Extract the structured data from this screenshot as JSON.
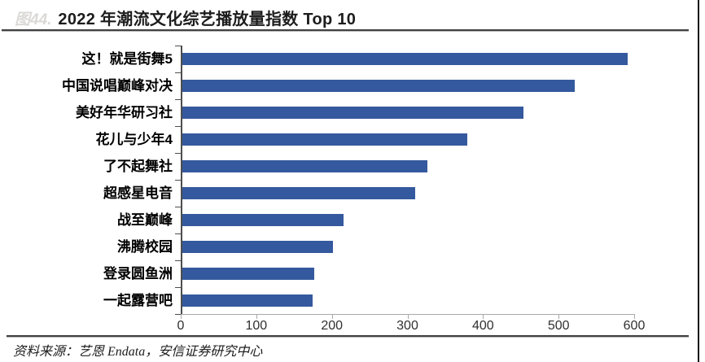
{
  "header": {
    "figure_label": "图44.",
    "title": "2022 年潮流文化综艺播放量指数 Top 10"
  },
  "footer": {
    "source": "资料来源：艺恩 Endata，安信证券研究中心"
  },
  "chart_data": {
    "type": "bar",
    "orientation": "horizontal",
    "title": "2022 年潮流文化综艺播放量指数 Top 10",
    "categories": [
      "这！就是街舞5",
      "中国说唱巅峰对决",
      "美好年华研习社",
      "花儿与少年4",
      "了不起舞社",
      "超感星电音",
      "战至巅峰",
      "沸腾校园",
      "登录圆鱼洲",
      "一起露营吧"
    ],
    "values": [
      590,
      520,
      452,
      378,
      325,
      309,
      214,
      200,
      176,
      173
    ],
    "xlabel": "",
    "ylabel": "",
    "xlim": [
      0,
      600
    ],
    "x_ticks": [
      0,
      100,
      200,
      300,
      400,
      500,
      600
    ],
    "bar_color": "#35599E",
    "axis_color": "#4D4D4D",
    "grid": false,
    "legend": false
  }
}
